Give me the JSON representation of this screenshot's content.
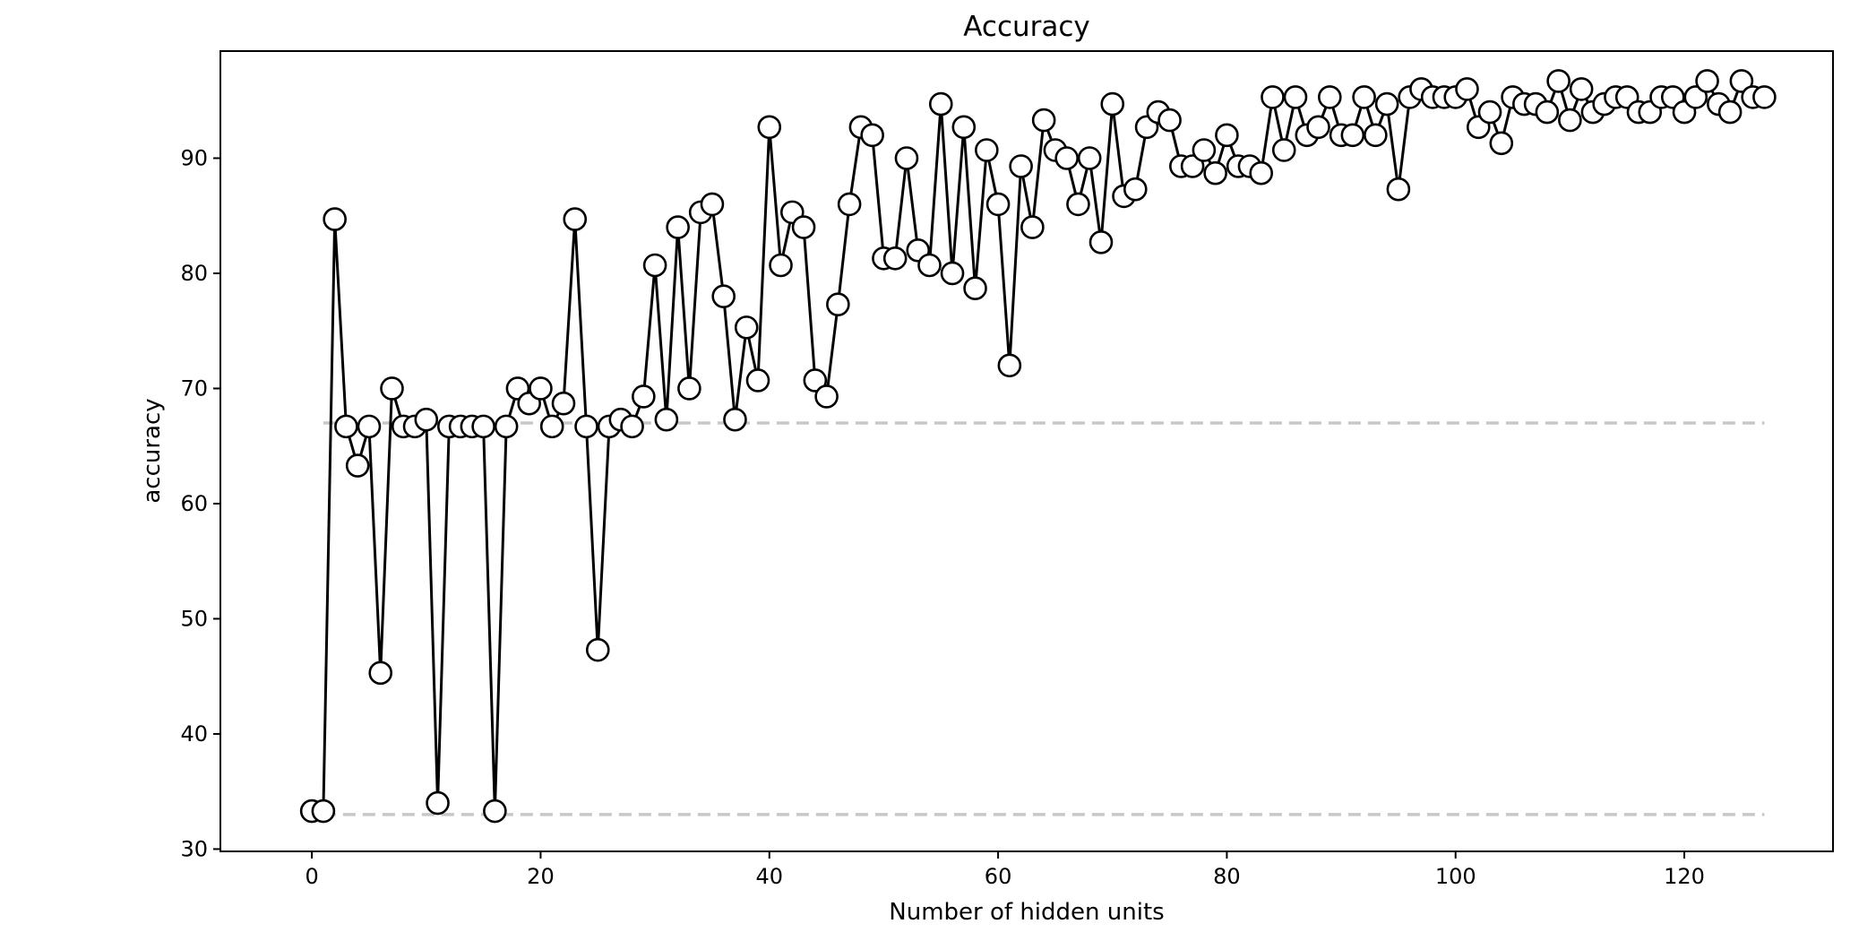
{
  "chart_data": {
    "type": "line",
    "title": "Accuracy",
    "xlabel": "Number of hidden units",
    "ylabel": "accuracy",
    "xlim": [
      -8,
      133
    ],
    "ylim": [
      29.8,
      99.3
    ],
    "xticks": [
      0,
      20,
      40,
      60,
      80,
      100,
      120
    ],
    "yticks": [
      30,
      40,
      50,
      60,
      70,
      80,
      90
    ],
    "grid": false,
    "reference_lines": [
      {
        "y": 67,
        "x_range": [
          1,
          127
        ],
        "style": "dashed",
        "color": "#c8c8c8"
      },
      {
        "y": 33,
        "x_range": [
          1,
          127
        ],
        "style": "dashed",
        "color": "#c8c8c8"
      }
    ],
    "series": [
      {
        "x": [
          0,
          1,
          2,
          3,
          4,
          5,
          6,
          7,
          8,
          9,
          10,
          11,
          12,
          13,
          14,
          15,
          16,
          17,
          18,
          19,
          20,
          21,
          22,
          23,
          24,
          25,
          26,
          27,
          28,
          29,
          30,
          31,
          32,
          33,
          34,
          35,
          36,
          37,
          38,
          39,
          40,
          41,
          42,
          43,
          44,
          45,
          46,
          47,
          48,
          49,
          50,
          51,
          52,
          53,
          54,
          55,
          56,
          57,
          58,
          59,
          60,
          61,
          62,
          63,
          64,
          65,
          66,
          67,
          68,
          69,
          70,
          71,
          72,
          73,
          74,
          75,
          76,
          77,
          78,
          79,
          80,
          81,
          82,
          83,
          84,
          85,
          86,
          87,
          88,
          89,
          90,
          91,
          92,
          93,
          94,
          95,
          96,
          97,
          98,
          99,
          100,
          101,
          102,
          103,
          104,
          105,
          106,
          107,
          108,
          109,
          110,
          111,
          112,
          113,
          114,
          115,
          116,
          117,
          118,
          119,
          120,
          121,
          122,
          123,
          124,
          125,
          126,
          127
        ],
        "values": [
          33.3,
          33.3,
          84.7,
          66.7,
          63.3,
          66.7,
          45.3,
          70.0,
          66.7,
          66.7,
          67.3,
          34.0,
          66.7,
          66.7,
          66.7,
          66.7,
          33.3,
          66.7,
          70.0,
          68.7,
          70.0,
          66.7,
          68.7,
          84.7,
          66.7,
          47.3,
          66.7,
          67.3,
          66.7,
          69.3,
          80.7,
          67.3,
          84.0,
          70.0,
          85.3,
          86.0,
          78.0,
          67.3,
          75.3,
          70.7,
          92.7,
          80.7,
          85.3,
          84.0,
          70.7,
          69.3,
          77.3,
          86.0,
          92.7,
          92.0,
          81.3,
          81.3,
          90.0,
          82.0,
          80.7,
          94.7,
          80.0,
          92.7,
          78.7,
          90.7,
          86.0,
          72.0,
          89.3,
          84.0,
          93.3,
          90.7,
          90.0,
          86.0,
          90.0,
          82.7,
          94.7,
          86.7,
          87.3,
          92.7,
          94.0,
          93.3,
          89.3,
          89.3,
          90.7,
          88.7,
          92.0,
          89.3,
          89.3,
          88.7,
          95.3,
          90.7,
          95.3,
          92.0,
          92.7,
          95.3,
          92.0,
          92.0,
          95.3,
          92.0,
          94.7,
          87.3,
          95.3,
          96.0,
          95.3,
          95.3,
          95.3,
          96.0,
          92.7,
          94.0,
          91.3,
          95.3,
          94.7,
          94.7,
          94.0,
          96.7,
          93.3,
          96.0,
          94.0,
          94.7,
          95.3,
          95.3,
          94.0,
          94.0,
          95.3,
          95.3,
          94.0,
          95.3,
          96.7,
          94.7,
          94.0,
          96.7,
          95.3,
          95.3
        ]
      }
    ]
  }
}
